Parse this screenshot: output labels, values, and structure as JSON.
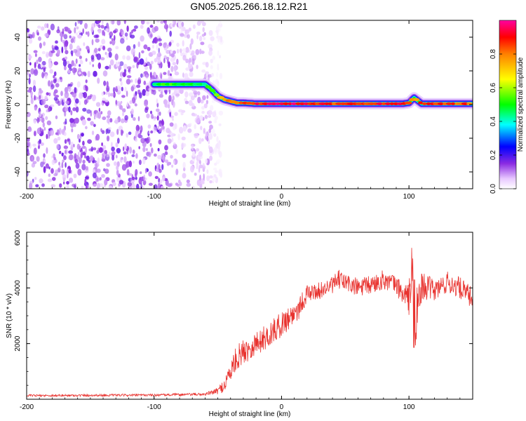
{
  "title": "GN05.2025.266.18.12.R21",
  "colors": {
    "snr_line": "#e8322e",
    "axis": "#000000",
    "background": "#ffffff",
    "ridge_core": "#e8323a"
  },
  "chart_data": [
    {
      "type": "heatmap",
      "panel": "top",
      "xlabel": "Height of straight line (km)",
      "ylabel": "Frequency (Hz)",
      "xlim": [
        -200,
        150
      ],
      "ylim": [
        -50,
        50
      ],
      "xticks": [
        -200,
        -100,
        0,
        100
      ],
      "yticks": [
        -40,
        -20,
        0,
        20,
        40
      ],
      "colorbar": {
        "label": "Normalized spectral amplitude",
        "range": [
          0,
          1
        ],
        "ticks": [
          "0.0",
          "0.2",
          "0.4",
          "0.6",
          "0.8"
        ],
        "colormap": [
          "#ffffff",
          "#e8c8ff",
          "#8a2be2",
          "#0000ff",
          "#00ffff",
          "#00ff00",
          "#ffff00",
          "#ff8000",
          "#ff0000",
          "#ff00a0"
        ]
      },
      "noise_region_x": [
        -200,
        -55
      ],
      "ridge": {
        "x": [
          -100,
          -90,
          -80,
          -70,
          -60,
          -55,
          -50,
          -45,
          -40,
          -35,
          -30,
          -20,
          -10,
          0,
          20,
          40,
          60,
          80,
          95,
          100,
          104,
          110,
          130,
          150
        ],
        "frequency": [
          12,
          12,
          12,
          12,
          12,
          9,
          5,
          3,
          2,
          1,
          1,
          0.5,
          0.5,
          0.5,
          0.5,
          0.5,
          0.5,
          0.5,
          0.5,
          1,
          4,
          0.5,
          0.5,
          0.5
        ],
        "amplitude": [
          0.45,
          0.5,
          0.5,
          0.5,
          0.45,
          0.55,
          0.65,
          0.75,
          0.8,
          0.85,
          0.85,
          0.9,
          0.9,
          0.95,
          0.9,
          0.85,
          0.85,
          0.9,
          0.9,
          0.85,
          0.75,
          0.9,
          0.85,
          0.85
        ]
      }
    },
    {
      "type": "line",
      "panel": "bottom",
      "xlabel": "Height of straight line (km)",
      "ylabel": "SNR (10 * v/v)",
      "xlim": [
        -200,
        150
      ],
      "ylim": [
        0,
        6000
      ],
      "xticks": [
        -200,
        -100,
        0,
        100
      ],
      "yticks": [
        2000,
        4000,
        6000
      ],
      "series": [
        {
          "name": "SNR",
          "x": [
            -200,
            -150,
            -100,
            -60,
            -50,
            -45,
            -40,
            -35,
            -30,
            -20,
            -10,
            0,
            10,
            15,
            20,
            30,
            40,
            45,
            50,
            60,
            70,
            80,
            90,
            95,
            100,
            103,
            105,
            110,
            120,
            130,
            140,
            150
          ],
          "y": [
            130,
            140,
            150,
            180,
            300,
            500,
            1000,
            1500,
            1700,
            2000,
            2300,
            2700,
            3100,
            3400,
            3800,
            3900,
            4100,
            4300,
            4200,
            4000,
            4100,
            4300,
            4100,
            3800,
            3600,
            5000,
            2800,
            4100,
            3900,
            4200,
            4000,
            3600
          ],
          "noise_amplitude": [
            40,
            40,
            40,
            50,
            120,
            250,
            400,
            450,
            450,
            450,
            450,
            450,
            450,
            450,
            300,
            300,
            300,
            350,
            350,
            350,
            350,
            350,
            350,
            400,
            600,
            1200,
            1100,
            500,
            400,
            400,
            400,
            400
          ]
        }
      ]
    }
  ]
}
